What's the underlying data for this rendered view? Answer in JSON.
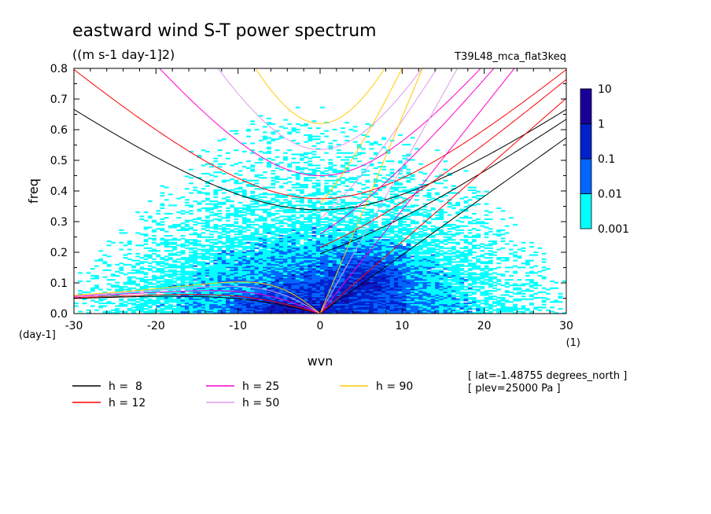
{
  "chart_data": {
    "type": "heatmap",
    "title": "eastward wind S-T power spectrum",
    "units": "((m s-1 day-1]2)",
    "experiment": "T39L48_mca_flat3keq",
    "xlabel": "wvn",
    "ylabel": "freq",
    "x_unit": "(1)",
    "y_unit": "(day-1]",
    "xlim": [
      -30,
      30
    ],
    "ylim": [
      0,
      0.8
    ],
    "x_ticks": [
      -30,
      -20,
      -10,
      0,
      10,
      20,
      30
    ],
    "x_tick_labels": [
      "-30",
      "-20",
      "-10",
      "0",
      "10",
      "20",
      "30"
    ],
    "y_ticks": [
      0,
      0.1,
      0.2,
      0.3,
      0.4,
      0.5,
      0.6,
      0.7,
      0.8
    ],
    "y_tick_labels": [
      "0.0",
      "0.1",
      "0.2",
      "0.3",
      "0.4",
      "0.5",
      "0.6",
      "0.7",
      "0.8"
    ],
    "colorbar": {
      "levels": [
        0.001,
        0.01,
        0.1,
        1,
        10
      ],
      "labels": [
        "0.001",
        "0.01",
        "0.1",
        "1",
        "10"
      ],
      "colors": [
        "#00ffff",
        "#0066ff",
        "#0022cc",
        "#1a0099"
      ]
    },
    "dispersion_curves": [
      {
        "label": "h =  8",
        "h": 8,
        "color": "#000000"
      },
      {
        "label": "h = 12",
        "h": 12,
        "color": "#ff0000"
      },
      {
        "label": "h = 25",
        "h": 25,
        "color": "#ff00cc"
      },
      {
        "label": "h = 50",
        "h": 50,
        "color": "#dd99ee"
      },
      {
        "label": "h = 90",
        "h": 90,
        "color": "#ffcc00"
      }
    ],
    "annotations": [
      "[ lat=-1.48755 degrees_north ]",
      "[ plev=25000 Pa ]"
    ]
  }
}
